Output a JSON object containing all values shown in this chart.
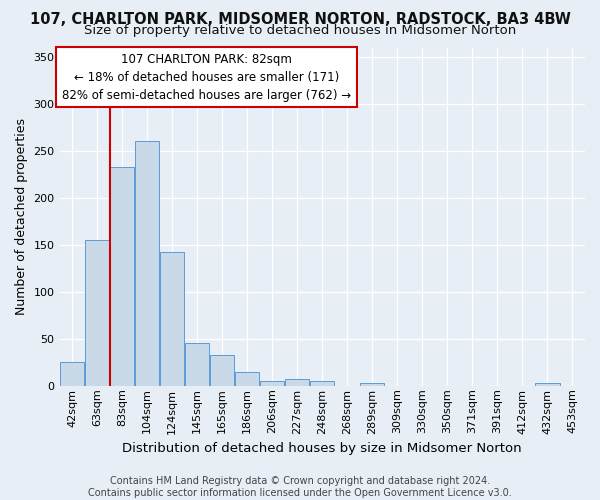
{
  "title": "107, CHARLTON PARK, MIDSOMER NORTON, RADSTOCK, BA3 4BW",
  "subtitle": "Size of property relative to detached houses in Midsomer Norton",
  "xlabel": "Distribution of detached houses by size in Midsomer Norton",
  "ylabel": "Number of detached properties",
  "footer": "Contains HM Land Registry data © Crown copyright and database right 2024.\nContains public sector information licensed under the Open Government Licence v3.0.",
  "annotation_title": "107 CHARLTON PARK: 82sqm",
  "annotation_line1": "← 18% of detached houses are smaller (171)",
  "annotation_line2": "82% of semi-detached houses are larger (762) →",
  "vline_bin": 1,
  "categories": [
    "42sqm",
    "63sqm",
    "83sqm",
    "104sqm",
    "124sqm",
    "145sqm",
    "165sqm",
    "186sqm",
    "206sqm",
    "227sqm",
    "248sqm",
    "268sqm",
    "289sqm",
    "309sqm",
    "330sqm",
    "350sqm",
    "371sqm",
    "391sqm",
    "412sqm",
    "432sqm",
    "453sqm"
  ],
  "values": [
    25,
    155,
    233,
    260,
    142,
    46,
    33,
    15,
    5,
    7,
    5,
    0,
    3,
    0,
    0,
    0,
    0,
    0,
    0,
    3,
    0
  ],
  "bar_color": "#c9d9e8",
  "bar_edge_color": "#5b9bd5",
  "vline_color": "#cc0000",
  "annotation_box_color": "#ffffff",
  "annotation_box_edge_color": "#cc0000",
  "background_color": "#e8eef5",
  "grid_color": "#ffffff",
  "ylim": [
    0,
    360
  ],
  "yticks": [
    0,
    50,
    100,
    150,
    200,
    250,
    300,
    350
  ],
  "title_fontsize": 10.5,
  "subtitle_fontsize": 9.5,
  "xlabel_fontsize": 9.5,
  "ylabel_fontsize": 9,
  "tick_fontsize": 8,
  "annotation_fontsize": 8.5,
  "footer_fontsize": 7
}
